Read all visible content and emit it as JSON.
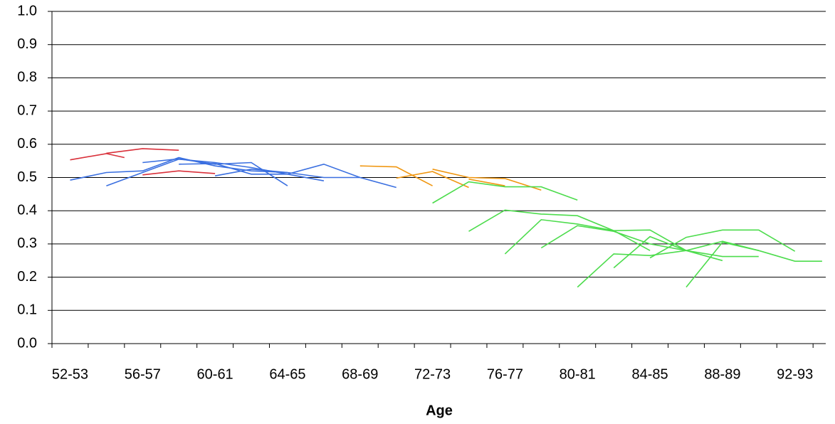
{
  "chart_data": {
    "type": "line",
    "x_label": "Age",
    "xlim": [
      52,
      94.7
    ],
    "xticks": [
      {
        "value": 53,
        "label": "52-53"
      },
      {
        "value": 57,
        "label": "56-57"
      },
      {
        "value": 61,
        "label": "60-61"
      },
      {
        "value": 65,
        "label": "64-65"
      },
      {
        "value": 69,
        "label": "68-69"
      },
      {
        "value": 73,
        "label": "72-73"
      },
      {
        "value": 77,
        "label": "76-77"
      },
      {
        "value": 81,
        "label": "80-81"
      },
      {
        "value": 85,
        "label": "84-85"
      },
      {
        "value": 89,
        "label": "88-89"
      },
      {
        "value": 93,
        "label": "92-93"
      }
    ],
    "xtick_marks": [
      52,
      54,
      56,
      58,
      60,
      62,
      64,
      66,
      68,
      70,
      72,
      74,
      76,
      78,
      80,
      82,
      84,
      86,
      88,
      90,
      92,
      94
    ],
    "ylim": [
      0,
      1
    ],
    "yticks": [
      {
        "value": 0,
        "label": "0.0"
      },
      0.1,
      0.2,
      0.3,
      0.4,
      0.5,
      0.6,
      0.7,
      0.8,
      0.9,
      {
        "value": 1,
        "label": "1.0"
      }
    ],
    "grid": true,
    "series": [
      {
        "color": "#d9303a",
        "x": [
          53,
          55,
          56
        ],
        "values": [
          0.553,
          0.572,
          0.56
        ]
      },
      {
        "color": "#d9303a",
        "x": [
          55,
          57,
          59
        ],
        "values": [
          0.573,
          0.587,
          0.582
        ]
      },
      {
        "color": "#d9303a",
        "x": [
          57,
          59,
          61
        ],
        "values": [
          0.508,
          0.52,
          0.512
        ]
      },
      {
        "color": "#3a6fe0",
        "x": [
          53,
          55,
          57,
          59,
          61,
          63,
          65,
          67,
          69
        ],
        "values": [
          0.492,
          0.515,
          0.52,
          0.56,
          0.535,
          0.52,
          0.515,
          0.5,
          0.5
        ]
      },
      {
        "color": "#3a6fe0",
        "x": [
          55,
          57,
          59,
          61,
          63,
          65,
          67,
          69,
          71
        ],
        "values": [
          0.475,
          0.515,
          0.555,
          0.545,
          0.53,
          0.51,
          0.54,
          0.5,
          0.47
        ]
      },
      {
        "color": "#3a6fe0",
        "x": [
          57,
          59,
          61,
          63,
          65
        ],
        "values": [
          0.545,
          0.556,
          0.54,
          0.545,
          0.475
        ]
      },
      {
        "color": "#3a6fe0",
        "x": [
          59,
          61,
          63,
          65,
          67
        ],
        "values": [
          0.54,
          0.542,
          0.51,
          0.51,
          0.49
        ]
      },
      {
        "color": "#3a6fe0",
        "x": [
          61,
          63,
          65
        ],
        "values": [
          0.505,
          0.525,
          0.515
        ]
      },
      {
        "color": "#f0960f",
        "x": [
          69,
          71,
          73
        ],
        "values": [
          0.535,
          0.532,
          0.475
        ]
      },
      {
        "color": "#f0960f",
        "x": [
          71,
          73,
          75
        ],
        "values": [
          0.498,
          0.518,
          0.47
        ]
      },
      {
        "color": "#f0960f",
        "x": [
          73,
          75,
          77,
          79
        ],
        "values": [
          0.525,
          0.5,
          0.497,
          0.462
        ]
      },
      {
        "color": "#f0960f",
        "x": [
          75,
          77
        ],
        "values": [
          0.495,
          0.475
        ]
      },
      {
        "color": "#4ddc4d",
        "x": [
          73,
          75,
          77,
          79,
          81
        ],
        "values": [
          0.423,
          0.487,
          0.472,
          0.472,
          0.432
        ]
      },
      {
        "color": "#4ddc4d",
        "x": [
          75,
          77,
          79,
          81,
          83,
          85
        ],
        "values": [
          0.338,
          0.402,
          0.39,
          0.385,
          0.34,
          0.28
        ]
      },
      {
        "color": "#4ddc4d",
        "x": [
          77,
          79,
          81,
          83,
          85,
          87,
          89,
          91
        ],
        "values": [
          0.27,
          0.373,
          0.36,
          0.34,
          0.342,
          0.28,
          0.262,
          0.262
        ]
      },
      {
        "color": "#4ddc4d",
        "x": [
          79,
          81,
          83,
          85,
          87,
          89
        ],
        "values": [
          0.288,
          0.355,
          0.338,
          0.3,
          0.28,
          0.25
        ]
      },
      {
        "color": "#4ddc4d",
        "x": [
          81,
          83,
          85,
          87,
          89,
          91,
          93,
          94.5
        ],
        "values": [
          0.17,
          0.27,
          0.265,
          0.28,
          0.308,
          0.28,
          0.248,
          0.248
        ]
      },
      {
        "color": "#4ddc4d",
        "x": [
          83,
          85,
          87
        ],
        "values": [
          0.228,
          0.322,
          0.28
        ]
      },
      {
        "color": "#4ddc4d",
        "x": [
          85,
          87,
          89,
          91,
          93
        ],
        "values": [
          0.258,
          0.32,
          0.342,
          0.342,
          0.278
        ]
      },
      {
        "color": "#4ddc4d",
        "x": [
          87,
          89,
          91
        ],
        "values": [
          0.17,
          0.305,
          0.28
        ]
      }
    ]
  }
}
